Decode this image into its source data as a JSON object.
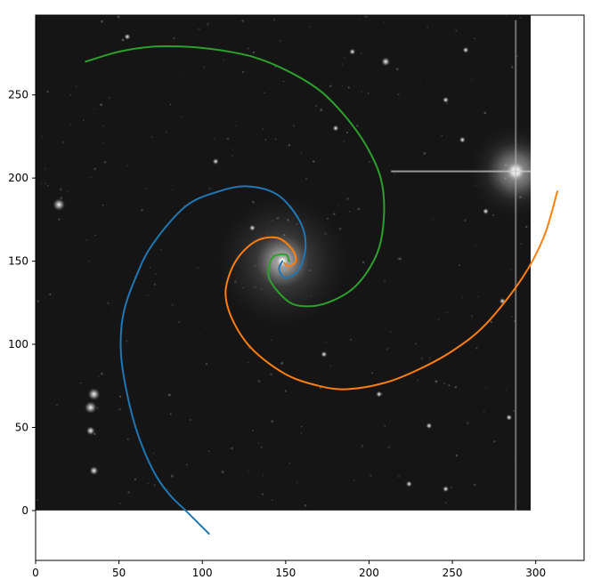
{
  "chart_data": {
    "type": "line",
    "title": "",
    "xlabel": "",
    "ylabel": "",
    "xlim": [
      0,
      329
    ],
    "ylim": [
      -30,
      298
    ],
    "xticks": [
      0,
      50,
      100,
      150,
      200,
      250,
      300
    ],
    "yticks": [
      0,
      50,
      100,
      150,
      200,
      250
    ],
    "grid": false,
    "background_image": {
      "description": "starfield-with-spiral-galaxy",
      "extent": [
        0,
        297,
        0,
        298
      ],
      "galaxy_center": [
        148,
        150
      ],
      "bright_star": [
        288,
        204
      ],
      "stars": [
        [
          14,
          184
        ],
        [
          33,
          62
        ],
        [
          35,
          70
        ],
        [
          33,
          48
        ],
        [
          35,
          24
        ],
        [
          210,
          270
        ],
        [
          180,
          230
        ],
        [
          256,
          223
        ],
        [
          246,
          247
        ],
        [
          270,
          180
        ],
        [
          236,
          51
        ],
        [
          284,
          56
        ],
        [
          173,
          94
        ],
        [
          224,
          16
        ],
        [
          246,
          13
        ],
        [
          55,
          285
        ],
        [
          190,
          276
        ],
        [
          130,
          170
        ],
        [
          108,
          210
        ],
        [
          280,
          126
        ],
        [
          206,
          70
        ],
        [
          258,
          277
        ]
      ]
    },
    "series": [
      {
        "color": "#1f77b4",
        "points": [
          [
            104,
            -14
          ],
          [
            90,
            0
          ],
          [
            80,
            10
          ],
          [
            70,
            25
          ],
          [
            60,
            50
          ],
          [
            53,
            80
          ],
          [
            51,
            100
          ],
          [
            53,
            120
          ],
          [
            60,
            140
          ],
          [
            70,
            160
          ],
          [
            90,
            183
          ],
          [
            110,
            192
          ],
          [
            127,
            195
          ],
          [
            145,
            190
          ],
          [
            158,
            175
          ],
          [
            162,
            160
          ],
          [
            158,
            145
          ],
          [
            150,
            140
          ],
          [
            146,
            145
          ],
          [
            148,
            150
          ]
        ]
      },
      {
        "color": "#ff7f0e",
        "points": [
          [
            313,
            192
          ],
          [
            305,
            165
          ],
          [
            292,
            140
          ],
          [
            270,
            112
          ],
          [
            250,
            96
          ],
          [
            230,
            85
          ],
          [
            210,
            77
          ],
          [
            187,
            73
          ],
          [
            170,
            75
          ],
          [
            150,
            82
          ],
          [
            130,
            97
          ],
          [
            118,
            115
          ],
          [
            114,
            132
          ],
          [
            120,
            150
          ],
          [
            132,
            162
          ],
          [
            145,
            164
          ],
          [
            154,
            157
          ],
          [
            156,
            150
          ],
          [
            152,
            147
          ],
          [
            149,
            149
          ]
        ]
      },
      {
        "color": "#2ca02c",
        "points": [
          [
            30,
            270
          ],
          [
            50,
            276
          ],
          [
            70,
            279
          ],
          [
            90,
            279
          ],
          [
            110,
            277
          ],
          [
            130,
            273
          ],
          [
            150,
            265
          ],
          [
            170,
            253
          ],
          [
            185,
            238
          ],
          [
            198,
            220
          ],
          [
            207,
            200
          ],
          [
            209,
            178
          ],
          [
            205,
            155
          ],
          [
            192,
            135
          ],
          [
            175,
            125
          ],
          [
            160,
            123
          ],
          [
            150,
            127
          ],
          [
            140,
            140
          ],
          [
            142,
            152
          ],
          [
            150,
            154
          ],
          [
            152,
            150
          ]
        ]
      }
    ]
  }
}
